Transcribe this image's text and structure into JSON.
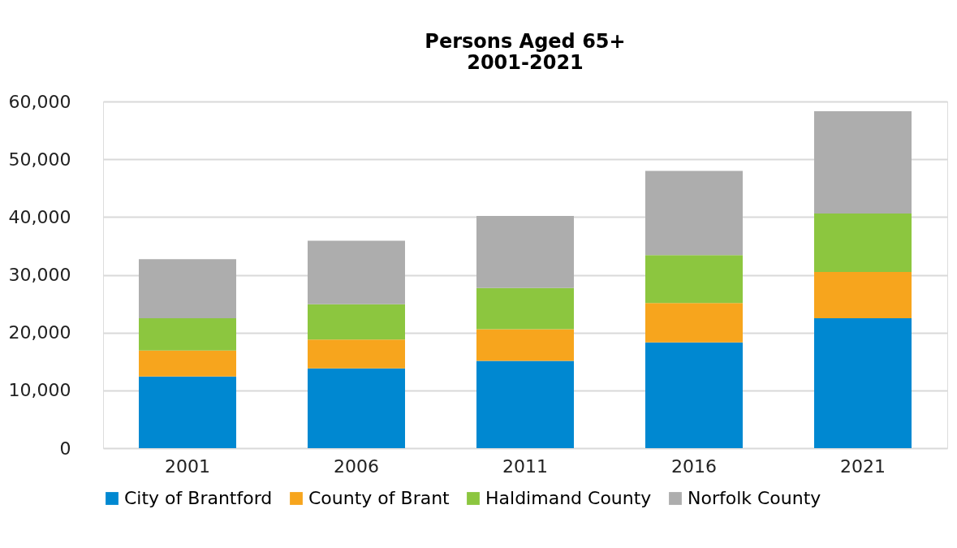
{
  "chart_data": {
    "type": "bar",
    "stacked": true,
    "title": "Persons Aged 65+\n2001-2021",
    "categories": [
      "2001",
      "2006",
      "2011",
      "2016",
      "2021"
    ],
    "series": [
      {
        "name": "City of Brantford",
        "color": "#0088d1",
        "values": [
          12400,
          13800,
          15100,
          18300,
          22500
        ]
      },
      {
        "name": "County of Brant",
        "color": "#f7a51d",
        "values": [
          4500,
          5000,
          5500,
          6800,
          8000
        ]
      },
      {
        "name": "Haldimand County",
        "color": "#8cc63f",
        "values": [
          5600,
          6100,
          7100,
          8300,
          10100
        ]
      },
      {
        "name": "Norfolk County",
        "color": "#adadad",
        "values": [
          10200,
          11000,
          12500,
          14600,
          17700
        ]
      }
    ],
    "ylim": [
      0,
      60000
    ],
    "yticks": [
      0,
      {
        "value": 10000,
        "label": "10,000"
      },
      {
        "value": 20000,
        "label": "20,000"
      },
      {
        "value": 30000,
        "label": "30,000"
      },
      {
        "value": 40000,
        "label": "40,000"
      },
      {
        "value": 50000,
        "label": "50,000"
      },
      {
        "value": 60000,
        "label": "60,000"
      }
    ],
    "grid": "y",
    "legend": "bottom"
  }
}
